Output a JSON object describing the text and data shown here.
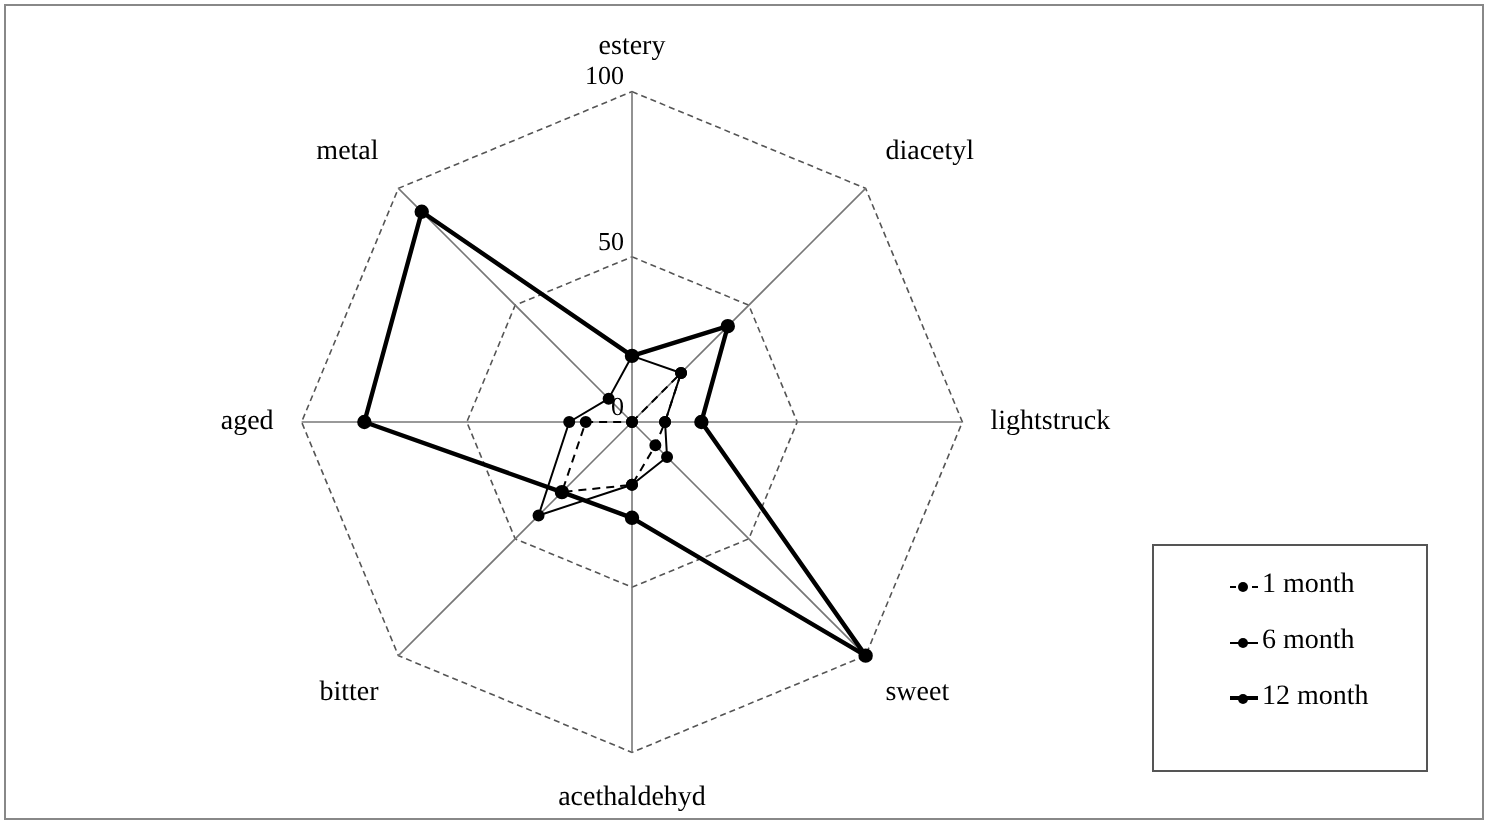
{
  "chart_data": {
    "type": "radar",
    "categories": [
      "estery",
      "diacetyl",
      "lightstruck",
      "sweet",
      "acethaldehyd",
      "bitter",
      "aged",
      "metal"
    ],
    "series": [
      {
        "name": "1 month",
        "color": "#000000",
        "line_style": "dashed",
        "values": [
          0,
          21,
          10,
          10,
          19,
          30,
          14,
          0
        ]
      },
      {
        "name": "6 month",
        "color": "#000000",
        "line_style": "solid",
        "values": [
          20,
          21,
          10,
          15,
          19,
          40,
          19,
          10
        ]
      },
      {
        "name": "12 month",
        "color": "#000000",
        "line_style": "solid",
        "values": [
          20,
          41,
          21,
          100,
          29,
          30,
          81,
          90
        ]
      }
    ],
    "ylim": [
      0,
      100
    ],
    "yticks": [
      0,
      50,
      100
    ],
    "grid": true,
    "legend": "bottom right",
    "marker": "circle"
  }
}
